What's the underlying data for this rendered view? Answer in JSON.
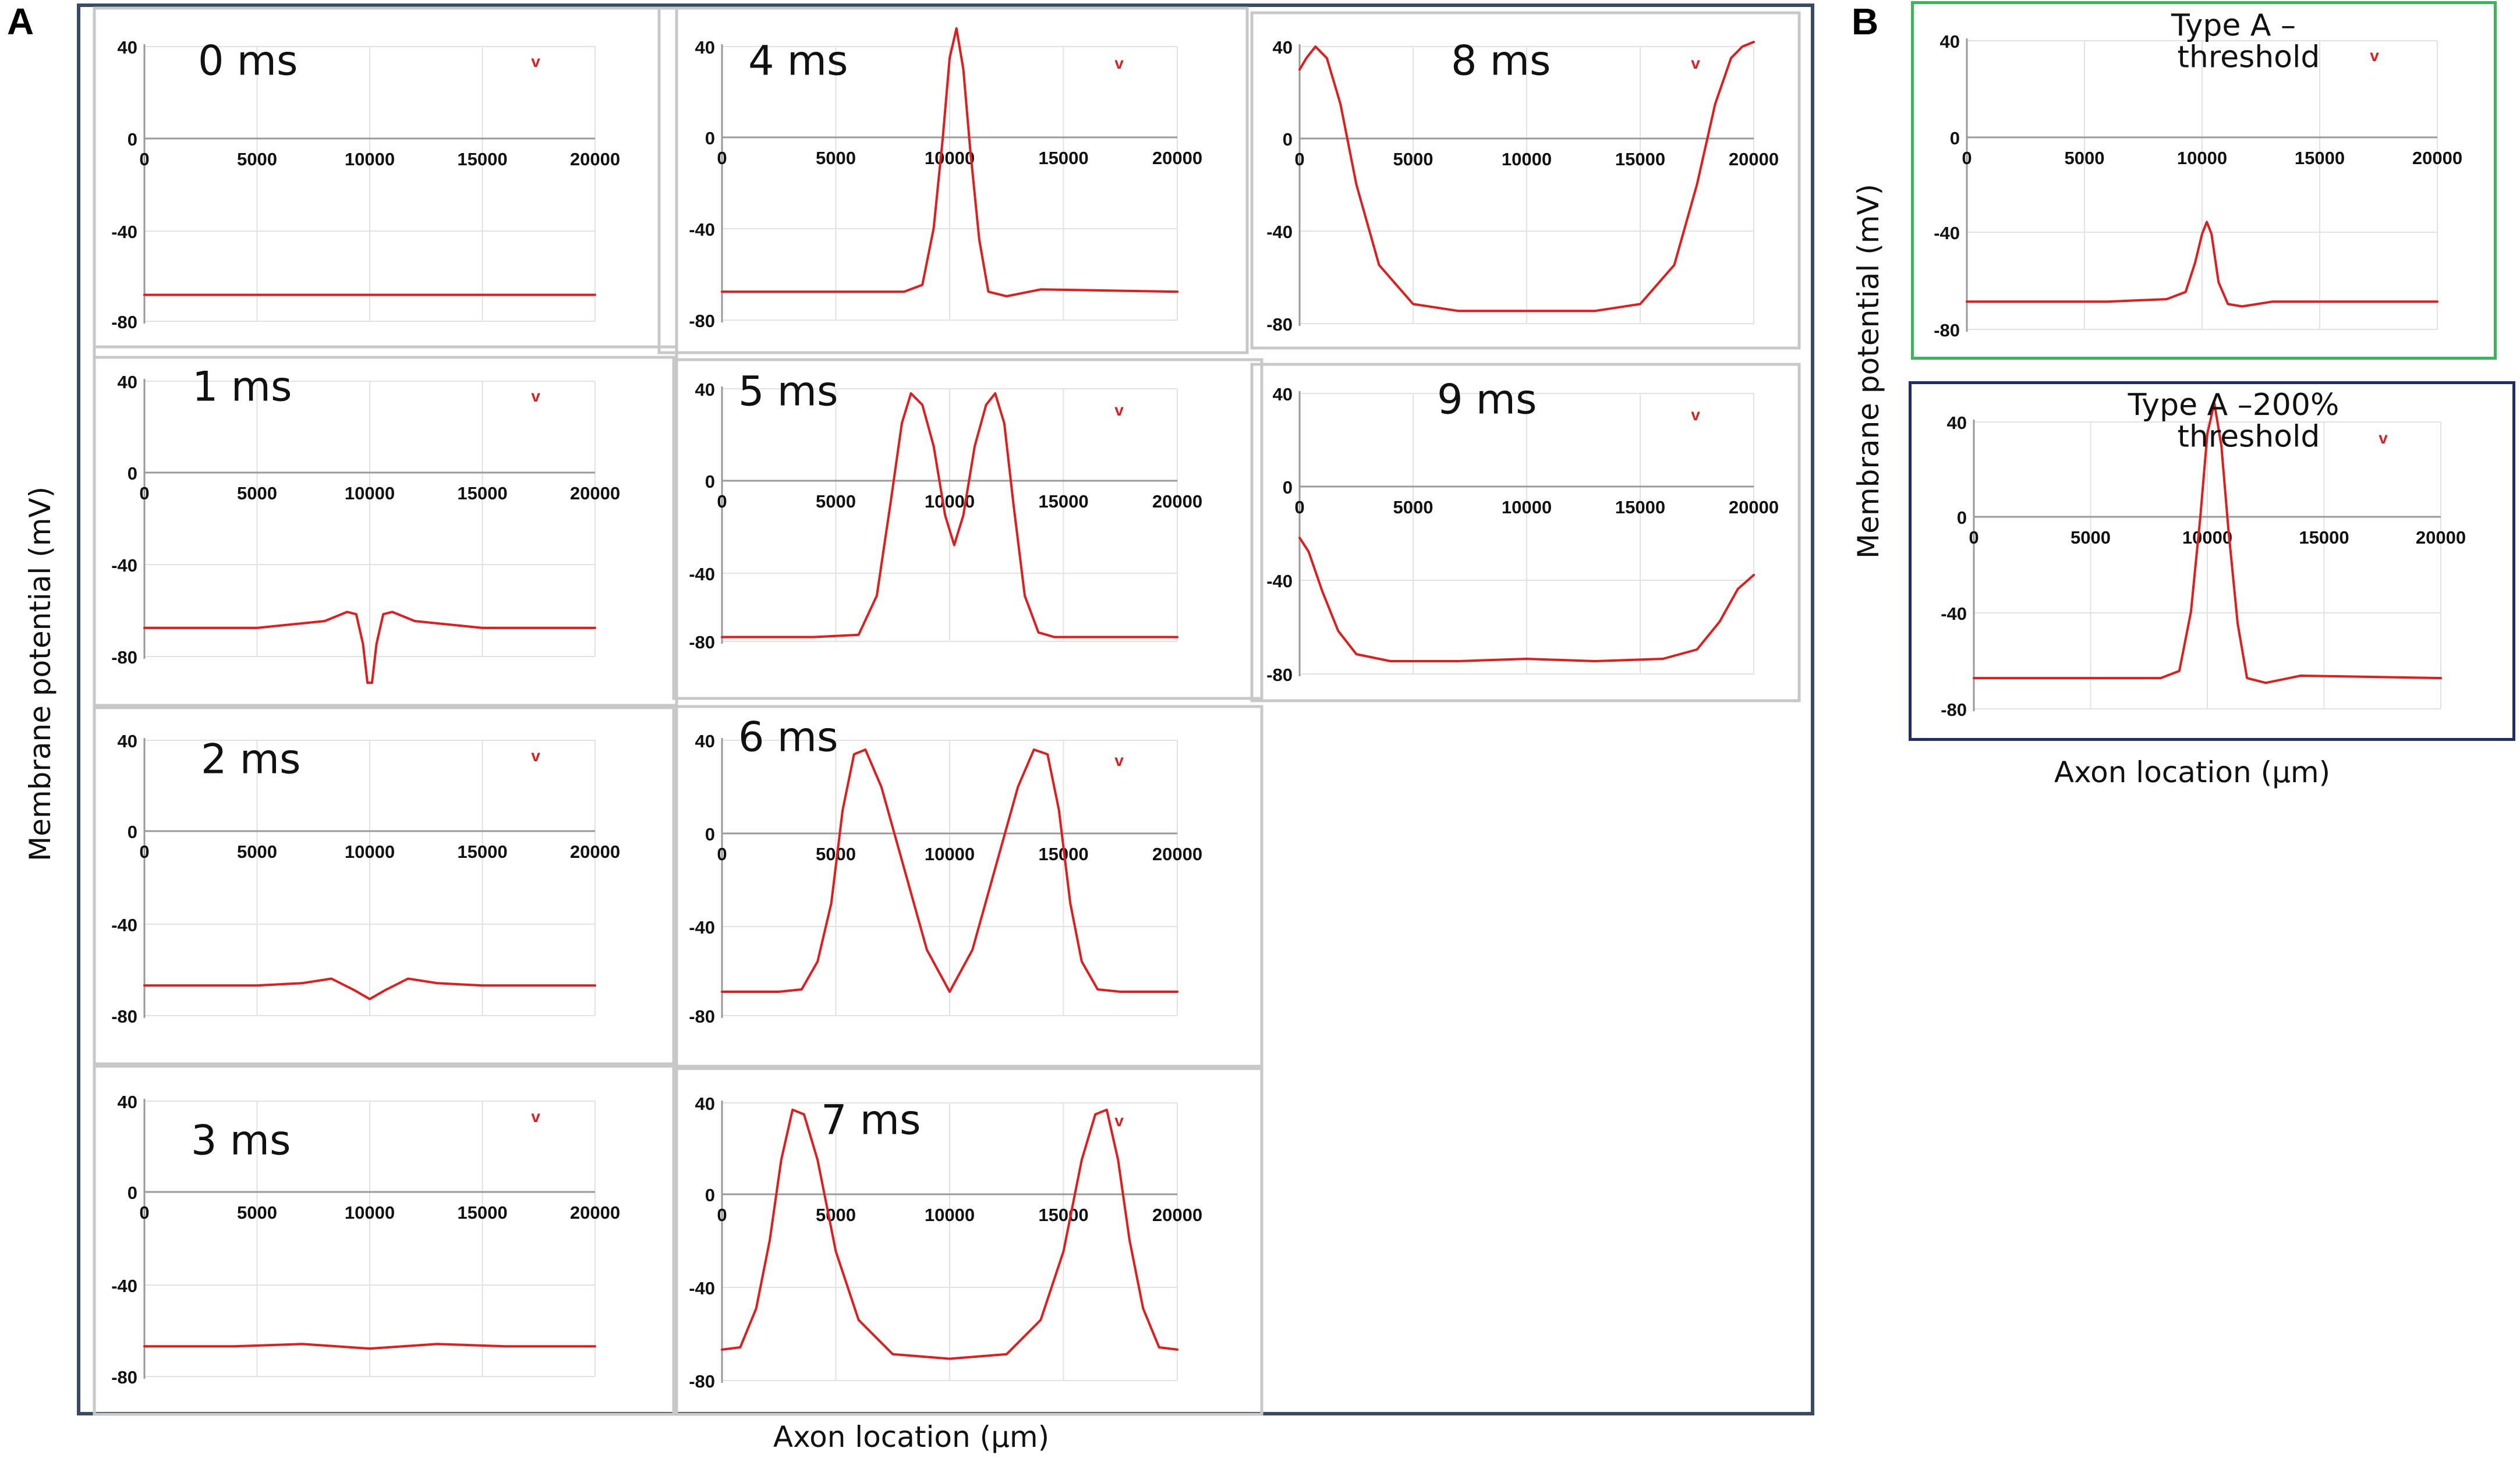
{
  "labels": {
    "panel_a": "A",
    "panel_b": "B",
    "y_label": "Membrane potential (mV)",
    "x_label": "Axon location (µm)"
  },
  "colors": {
    "trace": "#e31b1b",
    "panel_a_border": "#3a4a66",
    "panel_b_top_border": "#3cb55a",
    "panel_b_bottom_border": "#1f2d6b",
    "subplot_border": "#c8c8c8",
    "grid": "#e2e2e2"
  },
  "chart_data": [
    {
      "type": "line",
      "panel": "A",
      "title": "0 ms",
      "xlim": [
        0,
        20000
      ],
      "ylim": [
        -80,
        40
      ],
      "x_ticks": [
        "0",
        "5000",
        "10000",
        "15000",
        "20000"
      ],
      "y_ticks": [
        "40",
        "0",
        "-40",
        "-80"
      ],
      "marker": "v",
      "x": [
        0,
        2000,
        4000,
        6000,
        8000,
        10000,
        12000,
        14000,
        16000,
        18000,
        20000
      ],
      "y": [
        -68,
        -68,
        -68,
        -68,
        -68,
        -68,
        -68,
        -68,
        -68,
        -68,
        -68
      ]
    },
    {
      "type": "line",
      "panel": "A",
      "title": "1 ms",
      "xlim": [
        0,
        20000
      ],
      "ylim": [
        -80,
        40
      ],
      "x_ticks": [
        "0",
        "5000",
        "10000",
        "15000",
        "20000"
      ],
      "y_ticks": [
        "40",
        "0",
        "-40",
        "-80"
      ],
      "marker": "v",
      "x": [
        0,
        5000,
        8000,
        9000,
        9400,
        9700,
        9900,
        10000,
        10100,
        10300,
        10600,
        11000,
        12000,
        15000,
        20000
      ],
      "y": [
        -68,
        -68,
        -65,
        -61,
        -62,
        -75,
        -92,
        -92,
        -92,
        -75,
        -62,
        -61,
        -65,
        -68,
        -68
      ]
    },
    {
      "type": "line",
      "panel": "A",
      "title": "2 ms",
      "xlim": [
        0,
        20000
      ],
      "ylim": [
        -80,
        40
      ],
      "x_ticks": [
        "0",
        "5000",
        "10000",
        "15000",
        "20000"
      ],
      "y_ticks": [
        "40",
        "0",
        "-40",
        "-80"
      ],
      "marker": "v",
      "x": [
        0,
        5000,
        7000,
        8300,
        9300,
        10000,
        10700,
        11700,
        13000,
        15000,
        20000
      ],
      "y": [
        -68,
        -68,
        -67,
        -65,
        -70,
        -74,
        -70,
        -65,
        -67,
        -68,
        -68
      ]
    },
    {
      "type": "line",
      "panel": "A",
      "title": "3 ms",
      "xlim": [
        0,
        20000
      ],
      "ylim": [
        -80,
        40
      ],
      "x_ticks": [
        "0",
        "5000",
        "10000",
        "15000",
        "20000"
      ],
      "y_ticks": [
        "40",
        "0",
        "-40",
        "-80"
      ],
      "marker": "v",
      "x": [
        0,
        4000,
        7000,
        10000,
        13000,
        16000,
        20000
      ],
      "y": [
        -68,
        -68,
        -67,
        -69,
        -67,
        -68,
        -68
      ]
    },
    {
      "type": "line",
      "panel": "A",
      "title": "4 ms",
      "xlim": [
        0,
        20000
      ],
      "ylim": [
        -80,
        40
      ],
      "x_ticks": [
        "0",
        "5000",
        "10000",
        "15000",
        "20000"
      ],
      "y_ticks": [
        "40",
        "0",
        "-40",
        "-80"
      ],
      "marker": "v",
      "x": [
        0,
        6000,
        8000,
        8800,
        9300,
        9700,
        10000,
        10300,
        10600,
        10900,
        11300,
        11700,
        12500,
        14000,
        20000
      ],
      "y": [
        -68,
        -68,
        -68,
        -65,
        -40,
        0,
        35,
        48,
        30,
        -5,
        -45,
        -68,
        -70,
        -67,
        -68
      ]
    },
    {
      "type": "line",
      "panel": "A",
      "title": "5 ms",
      "xlim": [
        0,
        20000
      ],
      "ylim": [
        -80,
        40
      ],
      "x_ticks": [
        "0",
        "5000",
        "10000",
        "15000",
        "20000"
      ],
      "y_ticks": [
        "40",
        "0",
        "-40",
        "-80"
      ],
      "marker": "v",
      "x": [
        0,
        4000,
        6000,
        6800,
        7400,
        7900,
        8300,
        8800,
        9300,
        9800,
        10200,
        10600,
        11100,
        11600,
        12000,
        12400,
        12800,
        13300,
        13900,
        14600,
        16000,
        20000
      ],
      "y": [
        -68,
        -68,
        -67,
        -50,
        -10,
        25,
        38,
        33,
        15,
        -15,
        -28,
        -15,
        15,
        33,
        38,
        25,
        -10,
        -50,
        -66,
        -68,
        -68,
        -68
      ]
    },
    {
      "type": "line",
      "panel": "A",
      "title": "6 ms",
      "xlim": [
        0,
        20000
      ],
      "ylim": [
        -80,
        40
      ],
      "x_ticks": [
        "0",
        "5000",
        "10000",
        "15000",
        "20000"
      ],
      "y_ticks": [
        "40",
        "0",
        "-40",
        "-80"
      ],
      "marker": "v",
      "x": [
        0,
        2500,
        3500,
        4200,
        4800,
        5300,
        5800,
        6300,
        7000,
        8000,
        9000,
        10000,
        11000,
        12000,
        13000,
        13700,
        14300,
        14800,
        15300,
        15800,
        16500,
        17500,
        20000
      ],
      "y": [
        -68,
        -68,
        -67,
        -55,
        -30,
        10,
        34,
        36,
        20,
        -15,
        -50,
        -68,
        -50,
        -15,
        20,
        36,
        34,
        10,
        -30,
        -55,
        -67,
        -68,
        -68
      ]
    },
    {
      "type": "line",
      "panel": "A",
      "title": "7 ms",
      "xlim": [
        0,
        20000
      ],
      "ylim": [
        -80,
        40
      ],
      "x_ticks": [
        "0",
        "5000",
        "10000",
        "15000",
        "20000"
      ],
      "y_ticks": [
        "40",
        "0",
        "-40",
        "-80"
      ],
      "marker": "v",
      "x": [
        0,
        800,
        1500,
        2100,
        2600,
        3100,
        3600,
        4200,
        5000,
        6000,
        7500,
        10000,
        12500,
        14000,
        15000,
        15800,
        16400,
        16900,
        17400,
        17900,
        18500,
        19200,
        20000
      ],
      "y": [
        -68,
        -67,
        -50,
        -20,
        15,
        37,
        35,
        15,
        -25,
        -55,
        -70,
        -72,
        -70,
        -55,
        -25,
        15,
        35,
        37,
        15,
        -20,
        -50,
        -67,
        -68
      ]
    },
    {
      "type": "line",
      "panel": "A",
      "title": "8 ms",
      "xlim": [
        0,
        20000
      ],
      "ylim": [
        -80,
        40
      ],
      "x_ticks": [
        "0",
        "5000",
        "10000",
        "15000",
        "20000"
      ],
      "y_ticks": [
        "40",
        "0",
        "-40",
        "-80"
      ],
      "marker": "v",
      "x": [
        0,
        300,
        700,
        1200,
        1800,
        2500,
        3500,
        5000,
        7000,
        10000,
        13000,
        15000,
        16500,
        17500,
        18300,
        19000,
        19500,
        20000
      ],
      "y": [
        30,
        35,
        40,
        35,
        15,
        -20,
        -55,
        -72,
        -75,
        -75,
        -75,
        -72,
        -55,
        -20,
        15,
        35,
        40,
        42
      ]
    },
    {
      "type": "line",
      "panel": "A",
      "title": "9 ms",
      "xlim": [
        0,
        20000
      ],
      "ylim": [
        -80,
        40
      ],
      "x_ticks": [
        "0",
        "5000",
        "10000",
        "15000",
        "20000"
      ],
      "y_ticks": [
        "40",
        "0",
        "-40",
        "-80"
      ],
      "marker": "v",
      "x": [
        0,
        400,
        1000,
        1700,
        2500,
        4000,
        7000,
        10000,
        13000,
        16000,
        17500,
        18500,
        19300,
        20000
      ],
      "y": [
        -22,
        -28,
        -45,
        -62,
        -72,
        -75,
        -75,
        -74,
        -75,
        -74,
        -70,
        -58,
        -44,
        -38
      ]
    },
    {
      "type": "line",
      "panel": "B",
      "title": "Type A – threshold",
      "xlim": [
        0,
        20000
      ],
      "ylim": [
        -80,
        40
      ],
      "x_ticks": [
        "0",
        "5000",
        "10000",
        "15000",
        "20000"
      ],
      "y_ticks": [
        "40",
        "0",
        "-40",
        "-80"
      ],
      "marker": "v",
      "x": [
        0,
        6000,
        8500,
        9300,
        9700,
        10000,
        10200,
        10400,
        10700,
        11100,
        11700,
        13000,
        20000
      ],
      "y": [
        -68,
        -68,
        -67,
        -64,
        -52,
        -40,
        -35,
        -40,
        -60,
        -69,
        -70,
        -68,
        -68
      ]
    },
    {
      "type": "line",
      "panel": "B",
      "title": "Type A –200% threshold",
      "xlim": [
        0,
        20000
      ],
      "ylim": [
        -80,
        40
      ],
      "x_ticks": [
        "0",
        "5000",
        "10000",
        "15000",
        "20000"
      ],
      "y_ticks": [
        "40",
        "0",
        "-40",
        "-80"
      ],
      "marker": "v",
      "x": [
        0,
        6000,
        8000,
        8800,
        9300,
        9700,
        10000,
        10300,
        10600,
        10900,
        11300,
        11700,
        12500,
        14000,
        20000
      ],
      "y": [
        -68,
        -68,
        -68,
        -65,
        -40,
        0,
        35,
        48,
        30,
        -5,
        -45,
        -68,
        -70,
        -67,
        -68
      ]
    }
  ]
}
